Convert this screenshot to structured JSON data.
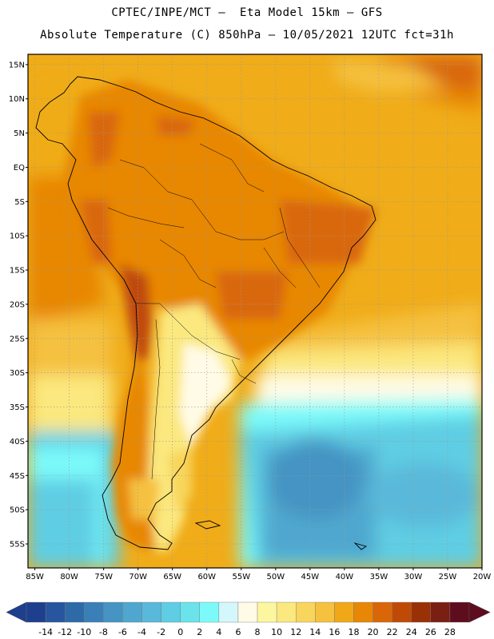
{
  "title_line1": "CPTEC/INPE/MCT –  Eta Model 15km – GFS",
  "title_line2": "Absolute Temperature (C) 850hPa – 10/05/2021 12UTC fct=31h",
  "map": {
    "lon_range": [
      -86,
      -20
    ],
    "lat_range": [
      -58.5,
      16.5
    ],
    "lat_ticks": [
      "15N",
      "10N",
      "5N",
      "EQ",
      "5S",
      "10S",
      "15S",
      "20S",
      "25S",
      "30S",
      "35S",
      "40S",
      "45S",
      "50S",
      "55S"
    ],
    "lon_ticks": [
      "85W",
      "80W",
      "75W",
      "70W",
      "65W",
      "60W",
      "55W",
      "50W",
      "45W",
      "40W",
      "35W",
      "30W",
      "25W",
      "20W"
    ],
    "grid": true
  },
  "colorbar": {
    "labels": [
      "-14",
      "-12",
      "-10",
      "-8",
      "-6",
      "-4",
      "-2",
      "0",
      "2",
      "4",
      "6",
      "8",
      "10",
      "12",
      "14",
      "16",
      "18",
      "20",
      "22",
      "24",
      "26",
      "28"
    ],
    "colors": [
      "#1d3f8e",
      "#27569e",
      "#2f6aa8",
      "#3a7fb7",
      "#4594c3",
      "#4fa7cf",
      "#5ab9da",
      "#5fcde3",
      "#6ae3ea",
      "#7cfafa",
      "#d4f7fb",
      "#fffbe6",
      "#fdf6a0",
      "#fbe87e",
      "#f8d55c",
      "#f5c13f",
      "#f0a818",
      "#e88705",
      "#d96708",
      "#bf4a07",
      "#9a3106",
      "#7a1f14",
      "#5e0d1e"
    ],
    "low_arrow_color": "#1d3f8e",
    "high_arrow_color": "#5e0d1e"
  },
  "colors": {
    "ocean_warm": "#f0ac19",
    "ocean_mid": "#f6ce4d",
    "ocean_cool": "#5fcde3",
    "ocean_cold": "#4fa7cf",
    "land_hot": "#d96708",
    "land_warm": "#e88705"
  }
}
